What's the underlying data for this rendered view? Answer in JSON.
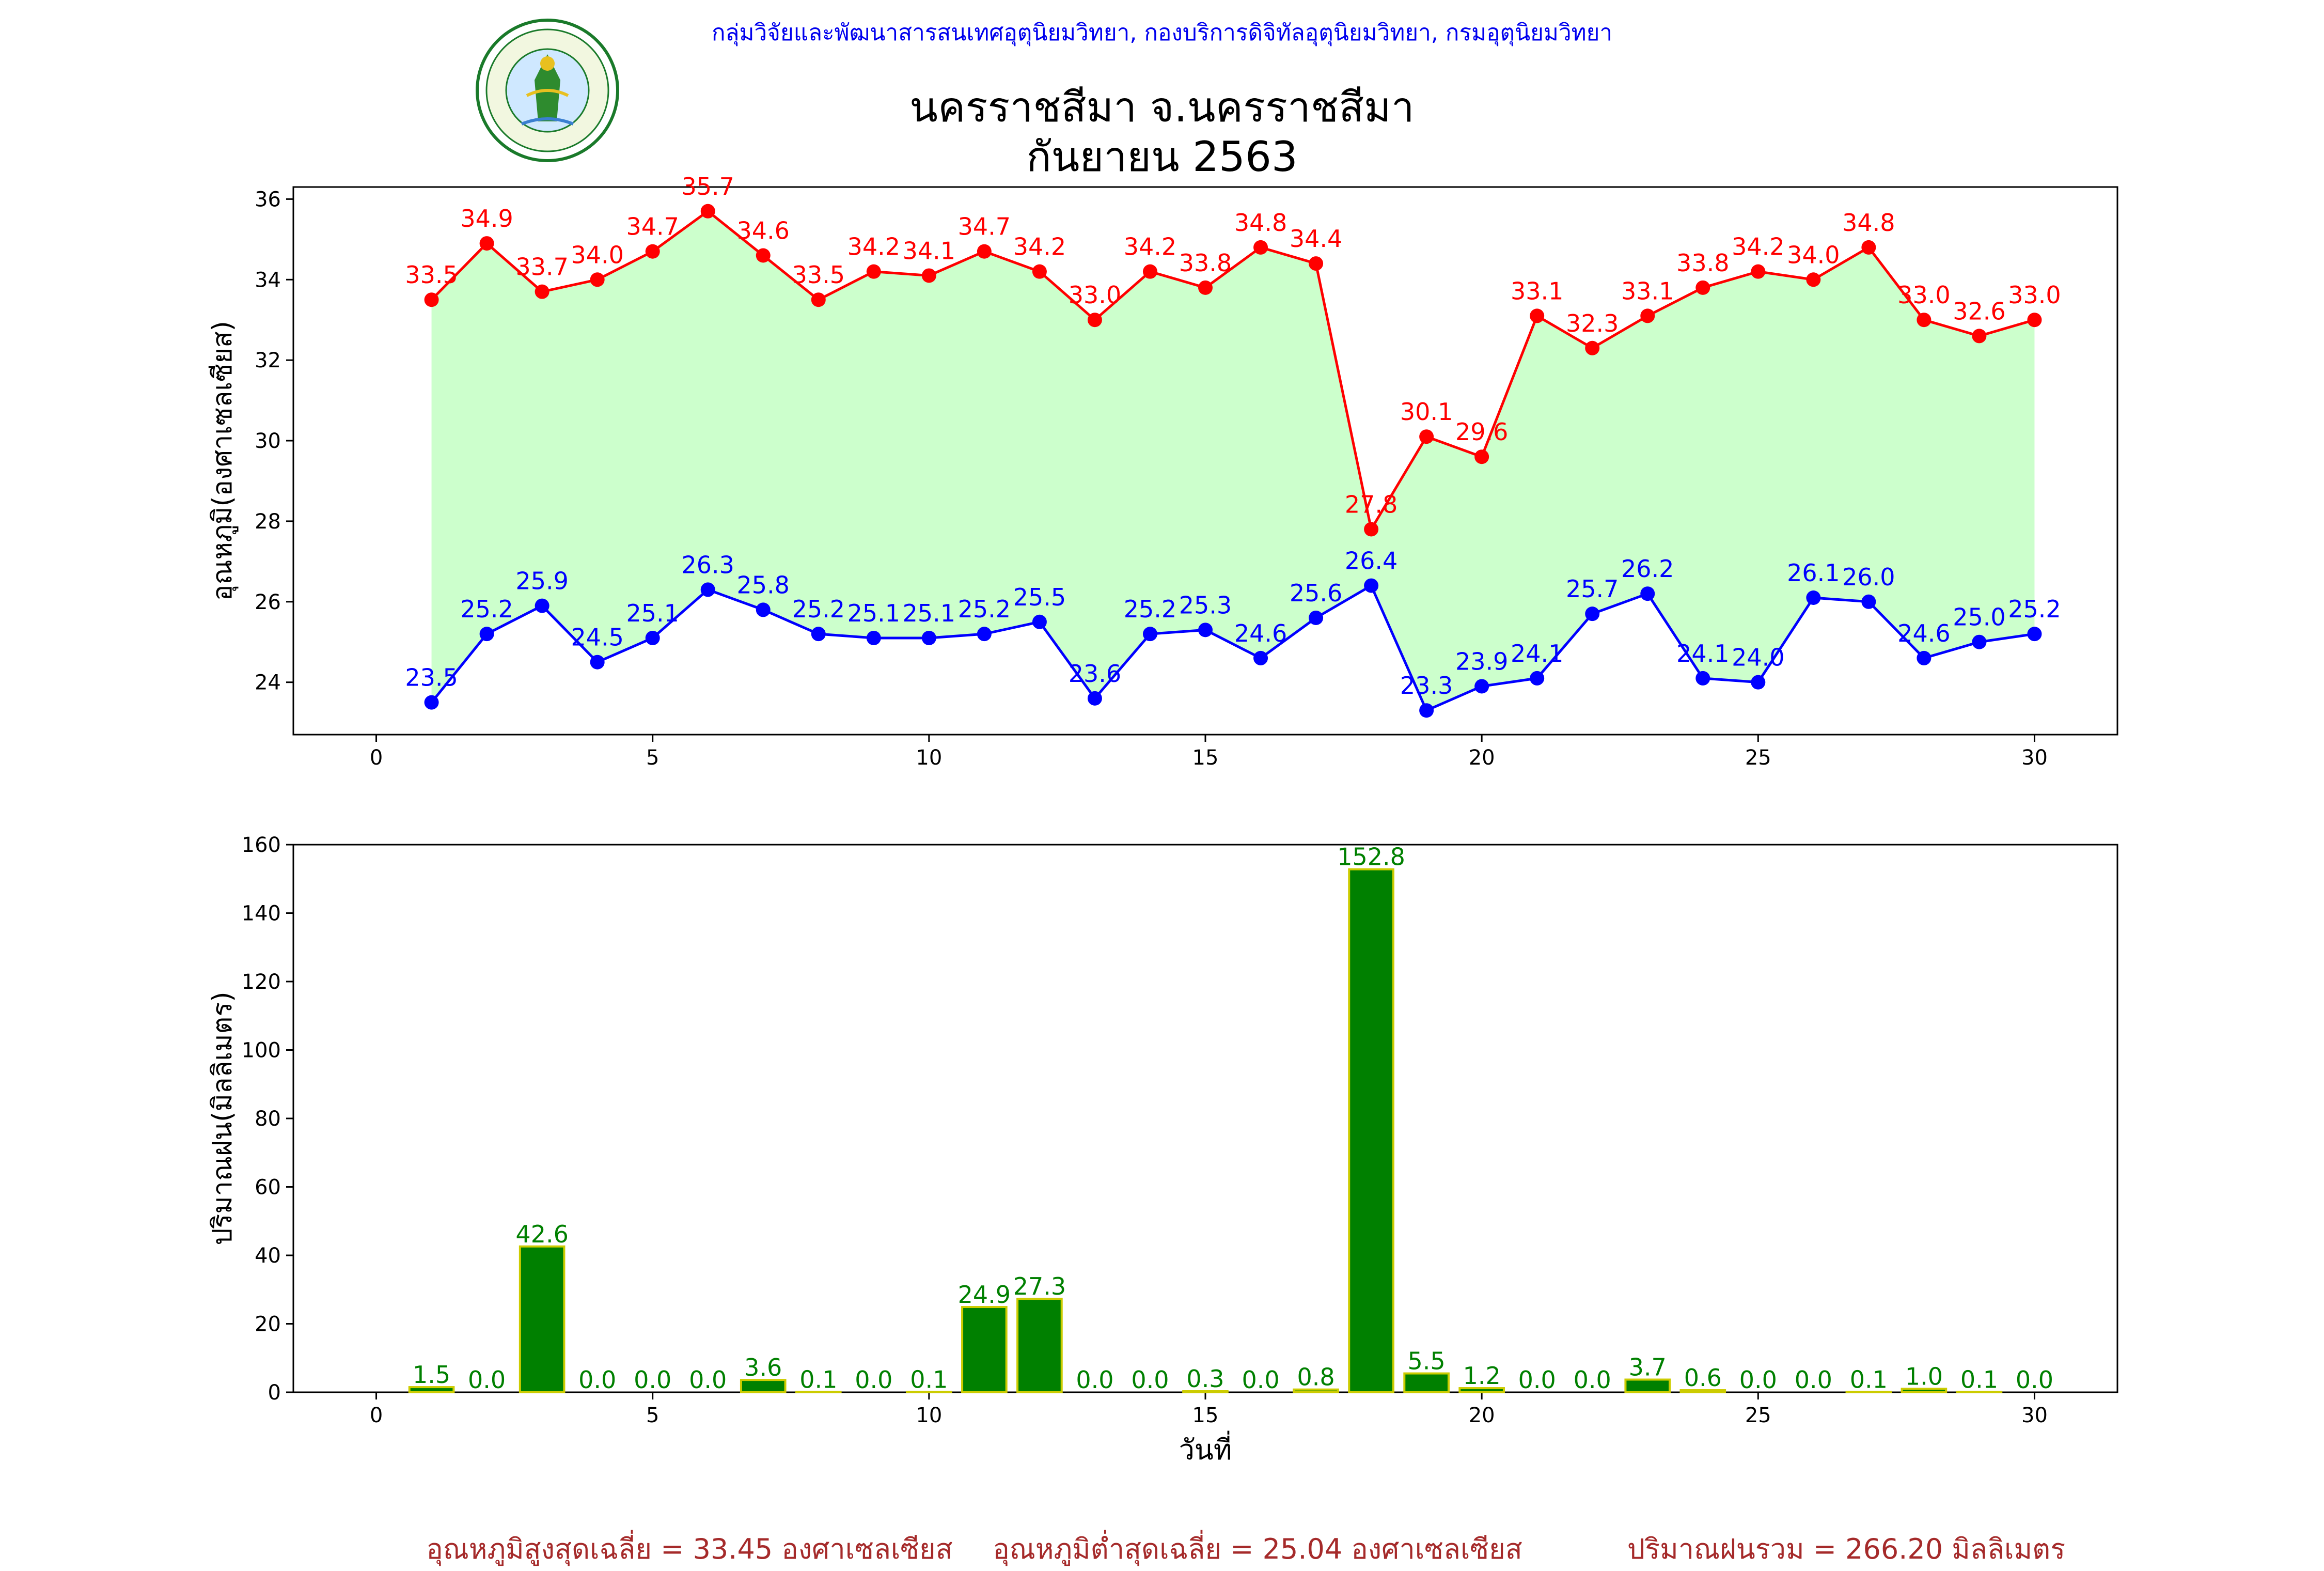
{
  "header": {
    "org": "กลุ่มวิจัยและพัฒนาสารสนเทศอุตุนิยมวิทยา, กองบริการดิจิทัลอุตุนิยมวิทยา, กรมอุตุนิยมวิทยา",
    "title_line1": "นครราชสีมา จ.นครราชสีมา",
    "title_line2": "กันยายน 2563",
    "logo_text": "กรมอุตุนิยมวิทยา",
    "logo_text_en": "METEOROLOGICAL DEPARTMENT"
  },
  "footer": {
    "avg_max": "อุณหภูมิสูงสุดเฉลี่ย = 33.45 องศาเซลเซียส",
    "avg_min": "อุณหภูมิต่ำสุดเฉลี่ย = 25.04 องศาเซลเซียส",
    "total_rain": "ปริมาณฝนรวม = 266.20 มิลลิเมตร"
  },
  "colors": {
    "max": "#ff0000",
    "min": "#0000ff",
    "fill": "#ccffcc",
    "bar": "#008000",
    "bar_edge": "#cccc00",
    "footer": "#a52a2a",
    "org": "#0000ee"
  },
  "chart_data": [
    {
      "type": "line",
      "ylabel": "อุณหภูมิ(องศาเซลเซียส)",
      "xlim": [
        -1.5,
        31.5
      ],
      "ylim": [
        22.7,
        36.3
      ],
      "xticks": [
        0,
        5,
        10,
        15,
        20,
        25,
        30
      ],
      "yticks": [
        24,
        26,
        28,
        30,
        32,
        34,
        36
      ],
      "x": [
        1,
        2,
        3,
        4,
        5,
        6,
        7,
        8,
        9,
        10,
        11,
        12,
        13,
        14,
        15,
        16,
        17,
        18,
        19,
        20,
        21,
        22,
        23,
        24,
        25,
        26,
        27,
        28,
        29,
        30
      ],
      "series": [
        {
          "key": "max",
          "values": [
            33.5,
            34.9,
            33.7,
            34.0,
            34.7,
            35.7,
            34.6,
            33.5,
            34.2,
            34.1,
            34.7,
            34.2,
            33.0,
            34.2,
            33.8,
            34.8,
            34.4,
            27.8,
            30.1,
            29.6,
            33.1,
            32.3,
            33.1,
            33.8,
            34.2,
            34.0,
            34.8,
            33.0,
            32.6,
            33.0
          ]
        },
        {
          "key": "min",
          "values": [
            23.5,
            25.2,
            25.9,
            24.5,
            25.1,
            26.3,
            25.8,
            25.2,
            25.1,
            25.1,
            25.2,
            25.5,
            23.6,
            25.2,
            25.3,
            24.6,
            25.6,
            26.4,
            23.3,
            23.9,
            24.1,
            25.7,
            26.2,
            24.1,
            24.0,
            26.1,
            26.0,
            24.6,
            25.0,
            25.2
          ]
        }
      ]
    },
    {
      "type": "bar",
      "ylabel": "ปริมาณฝน(มิลลิเมตร)",
      "xlabel": "วันที่",
      "xlim": [
        -1.5,
        31.5
      ],
      "ylim": [
        0,
        160
      ],
      "xticks": [
        0,
        5,
        10,
        15,
        20,
        25,
        30
      ],
      "yticks": [
        0,
        20,
        40,
        60,
        80,
        100,
        120,
        140,
        160
      ],
      "x": [
        1,
        2,
        3,
        4,
        5,
        6,
        7,
        8,
        9,
        10,
        11,
        12,
        13,
        14,
        15,
        16,
        17,
        18,
        19,
        20,
        21,
        22,
        23,
        24,
        25,
        26,
        27,
        28,
        29,
        30
      ],
      "values": [
        1.5,
        0.0,
        42.6,
        0.0,
        0.0,
        0.0,
        3.6,
        0.1,
        0.0,
        0.1,
        24.9,
        27.3,
        0.0,
        0.0,
        0.3,
        0.0,
        0.8,
        152.8,
        5.5,
        1.2,
        0.0,
        0.0,
        3.7,
        0.6,
        0.0,
        0.0,
        0.1,
        1.0,
        0.1,
        0.0
      ]
    }
  ]
}
